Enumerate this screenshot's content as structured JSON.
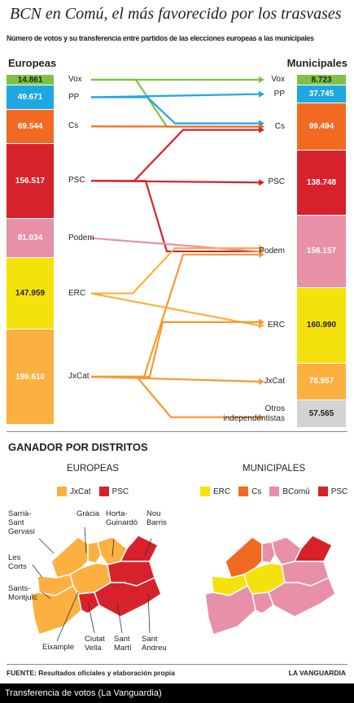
{
  "title": "BCN en Comú, el más favorecido por los trasvases",
  "subtitle": "Número de votos y su transferencia entre partidos de las elecciones europeas a las municipales",
  "chart_data": {
    "type": "flow",
    "left_title": "Europeas",
    "right_title": "Municipales",
    "left": [
      {
        "party": "Vox",
        "votes_label": "14.861",
        "votes": 14861,
        "color": "#7dc242"
      },
      {
        "party": "PP",
        "votes_label": "49.671",
        "votes": 49671,
        "color": "#1ea7e1"
      },
      {
        "party": "Cs",
        "votes_label": "69.544",
        "votes": 69544,
        "color": "#f26a21"
      },
      {
        "party": "PSC",
        "votes_label": "156.517",
        "votes": 156517,
        "color": "#d7222c"
      },
      {
        "party": "Podem",
        "votes_label": "81.034",
        "votes": 81034,
        "color": "#e890a8"
      },
      {
        "party": "ERC",
        "votes_label": "147.959",
        "votes": 147959,
        "color": "#f5e20c"
      },
      {
        "party": "JxCat",
        "votes_label": "199.610",
        "votes": 199610,
        "color": "#fbb040"
      }
    ],
    "right": [
      {
        "party": "Vox",
        "votes_label": "8.723",
        "votes": 8723,
        "color": "#7dc242"
      },
      {
        "party": "PP",
        "votes_label": "37.745",
        "votes": 37745,
        "color": "#1ea7e1"
      },
      {
        "party": "Cs",
        "votes_label": "99.494",
        "votes": 99494,
        "color": "#f26a21"
      },
      {
        "party": "PSC",
        "votes_label": "138.748",
        "votes": 138748,
        "color": "#d7222c"
      },
      {
        "party": "Podem",
        "votes_label": "156.157",
        "votes": 156157,
        "color": "#e890a8"
      },
      {
        "party": "ERC",
        "votes_label": "160.990",
        "votes": 160990,
        "color": "#f5e20c"
      },
      {
        "party": "JxCat",
        "votes_label": "78.957",
        "votes": 78957,
        "color": "#fbb040"
      },
      {
        "party": "Otros independentistas",
        "votes_label": "57.565",
        "votes": 57565,
        "color": "#d1d3d4"
      }
    ],
    "flows": [
      {
        "from": "Vox",
        "to": "Vox",
        "color": "#7dc242"
      },
      {
        "from": "Vox",
        "to": "Cs",
        "color": "#7dc242"
      },
      {
        "from": "PP",
        "to": "PP",
        "color": "#1ea7e1"
      },
      {
        "from": "PP",
        "to": "Cs",
        "color": "#1ea7e1"
      },
      {
        "from": "Cs",
        "to": "Cs",
        "color": "#f26a21"
      },
      {
        "from": "PSC",
        "to": "Cs",
        "color": "#d7222c"
      },
      {
        "from": "PSC",
        "to": "PSC",
        "color": "#d7222c"
      },
      {
        "from": "PSC",
        "to": "Podem",
        "color": "#d7222c"
      },
      {
        "from": "Podem",
        "to": "Podem",
        "color": "#e890a8"
      },
      {
        "from": "ERC",
        "to": "Podem",
        "color": "#fbb040"
      },
      {
        "from": "ERC",
        "to": "ERC",
        "color": "#fbb040"
      },
      {
        "from": "JxCat",
        "to": "Podem",
        "color": "#f79a2f"
      },
      {
        "from": "JxCat",
        "to": "ERC",
        "color": "#f79a2f"
      },
      {
        "from": "JxCat",
        "to": "JxCat",
        "color": "#f79a2f"
      },
      {
        "from": "JxCat",
        "to": "Otros independentistas",
        "color": "#f79a2f"
      }
    ]
  },
  "districts": {
    "section_title": "GANADOR POR DISTRITOS",
    "europeas": {
      "title": "EUROPEAS",
      "legend": [
        {
          "label": "JxCat",
          "color": "#fbb040"
        },
        {
          "label": "PSC",
          "color": "#d7222c"
        }
      ],
      "labels": [
        "Sarrià-\nSant\nGervasi",
        "Gràcia",
        "Horta-\nGuinardó",
        "Nou\nBarris",
        "Les\nCorts",
        "Sants-\nMontjuïc",
        "Eixample",
        "Ciutat\nVella",
        "Sant\nMartí",
        "Sant\nAndreu"
      ]
    },
    "municipales": {
      "title": "MUNICIPALES",
      "legend": [
        {
          "label": "ERC",
          "color": "#f5e20c"
        },
        {
          "label": "Cs",
          "color": "#f26a21"
        },
        {
          "label": "BComú",
          "color": "#e890a8"
        },
        {
          "label": "PSC",
          "color": "#d7222c"
        }
      ]
    }
  },
  "footer": {
    "source": "FUENTE: Resultados oficiales y elaboración propia",
    "brand": "LA VANGUARDIA"
  },
  "caption": "Transferencia de votos (La Vanguardia)"
}
